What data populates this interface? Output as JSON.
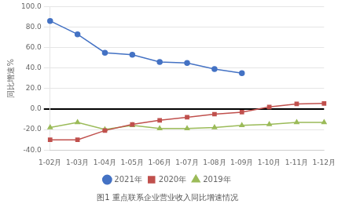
{
  "chart_data": {
    "type": "line",
    "title": "图1 重点联系企业营业收入同比增速情况",
    "ylabel": "同比增速%",
    "categories": [
      "1-02月",
      "1-03月",
      "1-04月",
      "1-05月",
      "1-06月",
      "1-07月",
      "1-08月",
      "1-09月",
      "1-10月",
      "1-11月",
      "1-12月"
    ],
    "series": [
      {
        "name": "2021年",
        "color": "#4472C4",
        "marker": "circle",
        "values": [
          86.0,
          73.0,
          55.0,
          53.0,
          46.0,
          45.0,
          39.0,
          35.0,
          null,
          null,
          null
        ]
      },
      {
        "name": "2020年",
        "color": "#C0504D",
        "marker": "square",
        "values": [
          -30.0,
          -30.0,
          -21.0,
          -15.0,
          -11.0,
          -8.0,
          -5.0,
          -3.0,
          2.0,
          5.0,
          5.5
        ]
      },
      {
        "name": "2019年",
        "color": "#9BBB59",
        "marker": "triangle",
        "values": [
          -18.0,
          -13.0,
          -20.0,
          -16.0,
          -19.0,
          -19.0,
          -18.0,
          -16.0,
          -15.0,
          -13.0,
          -13.0
        ]
      }
    ],
    "ylim": [
      -40.0,
      100.0
    ],
    "yticks": [
      {
        "value": -40,
        "label": "-40.0"
      },
      {
        "value": -20,
        "label": "-20.0"
      },
      {
        "value": 0,
        "label": "0.0"
      },
      {
        "value": 20,
        "label": "20.0"
      },
      {
        "value": 40,
        "label": "40.0"
      },
      {
        "value": 60,
        "label": "60.0"
      },
      {
        "value": 80,
        "label": "80.0"
      },
      {
        "value": 100,
        "label": "100.0"
      }
    ],
    "grid": true,
    "legend": "bottom"
  }
}
